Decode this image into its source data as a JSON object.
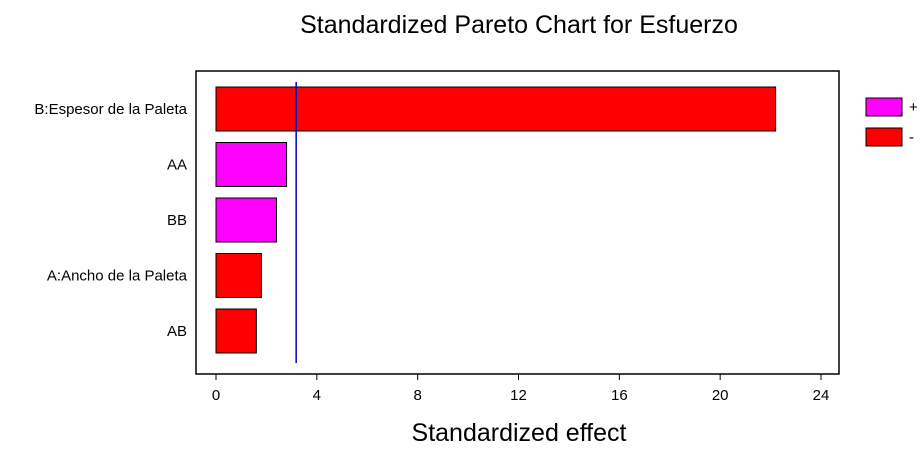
{
  "chart_data": {
    "type": "bar",
    "orientation": "horizontal",
    "title": "Standardized Pareto Chart for Esfuerzo",
    "xlabel": "Standardized effect",
    "ylabel": "",
    "categories": [
      "B:Espesor de la Paleta",
      "AA",
      "BB",
      "A:Ancho de la Paleta",
      "AB"
    ],
    "values": [
      22.2,
      2.8,
      2.4,
      1.8,
      1.6
    ],
    "signs": [
      "-",
      "+",
      "+",
      "-",
      "-"
    ],
    "xlim": [
      -0.8,
      24.7
    ],
    "xticks": [
      0,
      4,
      8,
      12,
      16,
      20,
      24
    ],
    "reference_line": 3.18,
    "grid": false,
    "legend": {
      "placement": "right",
      "entries": [
        {
          "label": "+",
          "color": "#ff00ff"
        },
        {
          "label": "-",
          "color": "#ff0000"
        }
      ]
    },
    "colors": {
      "+": "#ff00ff",
      "-": "#ff0000",
      "reference_line": "#0000cc"
    }
  }
}
